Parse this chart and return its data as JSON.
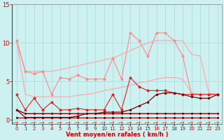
{
  "x": [
    0,
    1,
    2,
    3,
    4,
    5,
    6,
    7,
    8,
    9,
    10,
    11,
    12,
    13,
    14,
    15,
    16,
    17,
    18,
    19,
    20,
    21,
    22,
    23
  ],
  "y_jagged_upper": [
    10.3,
    6.3,
    6.0,
    6.3,
    3.3,
    5.5,
    5.3,
    5.8,
    5.3,
    5.3,
    5.3,
    8.0,
    5.3,
    11.3,
    10.3,
    8.3,
    11.3,
    11.3,
    10.3,
    8.3,
    3.3,
    3.3,
    3.3,
    3.3
  ],
  "y_env_top": [
    10.3,
    6.3,
    6.3,
    6.3,
    6.3,
    6.5,
    6.8,
    7.0,
    7.3,
    7.5,
    7.8,
    8.0,
    8.5,
    9.0,
    9.5,
    10.0,
    10.3,
    10.3,
    10.3,
    10.3,
    8.5,
    8.3,
    3.5,
    3.3
  ],
  "y_env_bottom": [
    10.3,
    3.3,
    3.0,
    3.0,
    3.0,
    3.0,
    3.0,
    3.2,
    3.3,
    3.5,
    3.8,
    4.0,
    4.2,
    4.5,
    4.8,
    5.0,
    5.3,
    5.5,
    5.5,
    5.3,
    3.5,
    3.3,
    3.3,
    3.3
  ],
  "y_medium_jagged": [
    3.3,
    1.3,
    2.8,
    1.3,
    2.3,
    1.3,
    1.3,
    1.5,
    1.3,
    1.3,
    1.3,
    3.3,
    1.3,
    5.5,
    4.3,
    3.8,
    3.8,
    3.8,
    3.5,
    3.3,
    3.3,
    3.3,
    3.3,
    3.3
  ],
  "y_rising_red": [
    1.3,
    0.3,
    0.3,
    0.3,
    0.3,
    0.3,
    0.3,
    0.5,
    0.8,
    0.8,
    1.0,
    1.0,
    1.0,
    1.3,
    1.8,
    2.3,
    3.3,
    3.5,
    3.5,
    3.3,
    3.0,
    2.8,
    2.8,
    3.3
  ],
  "y_flat_dark": [
    1.3,
    0.8,
    0.8,
    0.8,
    0.8,
    0.8,
    0.8,
    0.8,
    0.8,
    0.8,
    0.8,
    0.8,
    0.8,
    0.8,
    0.8,
    0.8,
    0.8,
    0.8,
    0.8,
    0.8,
    0.8,
    0.8,
    0.8,
    0.8
  ],
  "y_zero_dark": [
    0.3,
    0.3,
    0.3,
    0.3,
    0.3,
    0.3,
    0.3,
    0.3,
    0.3,
    0.3,
    0.3,
    0.3,
    0.3,
    0.3,
    0.3,
    0.3,
    0.3,
    0.3,
    0.3,
    0.3,
    0.3,
    0.3,
    0.3,
    0.3
  ],
  "bg_color": "#cdf0f0",
  "grid_color": "#a8d8d8",
  "color_light_salmon": "#ffaaaa",
  "color_salmon": "#ff8888",
  "color_red": "#dd2222",
  "color_dark_red": "#880000",
  "color_darkest": "#660000",
  "xlabel": "Vent moyen/en rafales ( km/h )",
  "ylim_min": -0.5,
  "ylim_max": 15,
  "xlim_min": -0.5,
  "xlim_max": 23.5,
  "yticks": [
    0,
    5,
    10,
    15
  ],
  "xticks": [
    0,
    1,
    2,
    3,
    4,
    5,
    6,
    7,
    8,
    9,
    10,
    11,
    12,
    13,
    14,
    15,
    16,
    17,
    18,
    19,
    20,
    21,
    22,
    23
  ]
}
